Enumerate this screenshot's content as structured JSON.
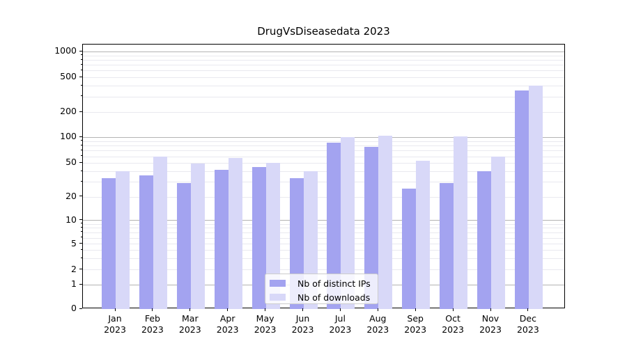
{
  "chart_data": {
    "type": "bar",
    "title": "DrugVsDiseasedata 2023",
    "categories": [
      "Jan 2023",
      "Feb 2023",
      "Mar 2023",
      "Apr 2023",
      "May 2023",
      "Jun 2023",
      "Jul 2023",
      "Aug 2023",
      "Sep 2023",
      "Oct 2023",
      "Nov 2023",
      "Dec 2023"
    ],
    "series": [
      {
        "name": "Nb of distinct IPs",
        "color": "#a3a3f0",
        "values": [
          33,
          36,
          29,
          42,
          45,
          33,
          87,
          78,
          25,
          29,
          40,
          355
        ]
      },
      {
        "name": "Nb of downloads",
        "color": "#d8d8f8",
        "values": [
          40,
          60,
          49,
          57,
          50,
          40,
          100,
          104,
          53,
          102,
          60,
          400
        ]
      }
    ],
    "xlabel": "",
    "ylabel": "",
    "yscale": "symlog",
    "y_ticks": [
      0,
      1,
      2,
      5,
      10,
      20,
      50,
      100,
      200,
      500,
      1000
    ],
    "ylim": [
      0,
      1200
    ],
    "grid": "both",
    "legend": {
      "position": "lower-center-inside",
      "items": [
        "Nb of distinct IPs",
        "Nb of downloads"
      ]
    }
  }
}
